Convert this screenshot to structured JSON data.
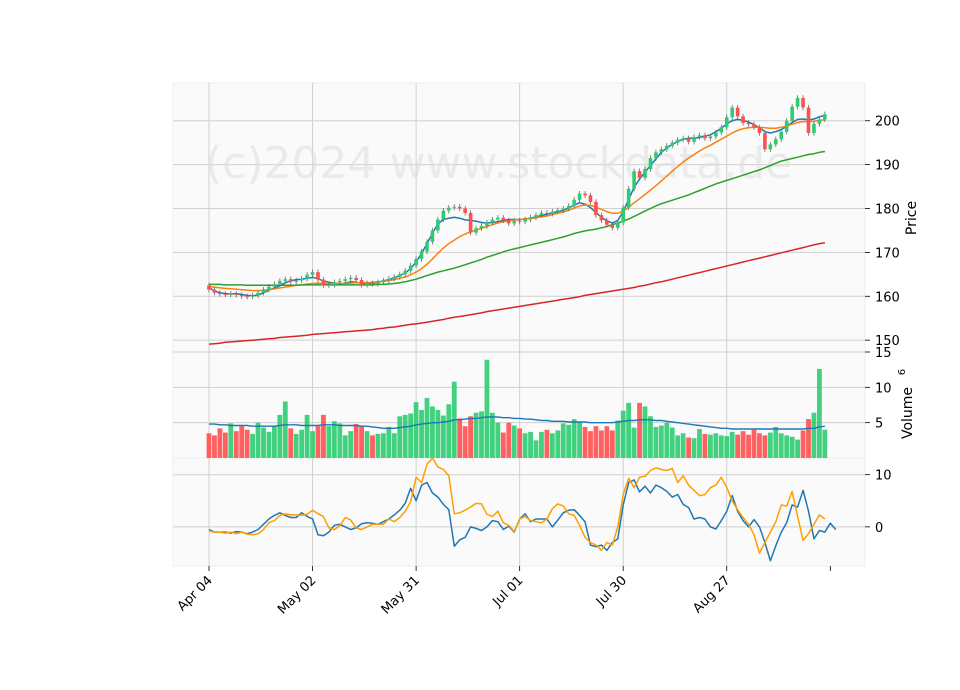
{
  "watermark": "(c)2024 www.stockdata.de",
  "chart_data": {
    "type": "candlestick",
    "x_tick_labels": [
      "Apr 04",
      "May 02",
      "May 31",
      "Jul 01",
      "Jul 30",
      "Aug 27"
    ],
    "x_tick_indices": [
      0,
      19,
      38,
      57,
      76,
      95
    ],
    "n_bars": 114,
    "price_panel": {
      "ylabel": "Price",
      "yticks": [
        150,
        160,
        170,
        180,
        190,
        200
      ],
      "ylim": [
        147.3,
        208.6
      ],
      "close": [
        161.5,
        160.8,
        160.5,
        160.4,
        160.6,
        160.3,
        160.0,
        159.9,
        160.2,
        160.8,
        161.5,
        162.2,
        162.8,
        163.5,
        163.9,
        163.3,
        163.6,
        164.0,
        164.9,
        165.5,
        163.8,
        162.5,
        162.6,
        163.2,
        163.5,
        163.9,
        164.2,
        163.7,
        162.6,
        163.0,
        162.8,
        163.2,
        163.6,
        164.0,
        164.4,
        165.0,
        165.8,
        167.0,
        168.5,
        170.2,
        172.4,
        175.0,
        177.5,
        179.5,
        180.2,
        180.4,
        180.0,
        179.0,
        174.5,
        175.5,
        176.0,
        176.8,
        177.5,
        177.9,
        177.3,
        176.6,
        177.2,
        177.0,
        177.5,
        178.0,
        178.5,
        179.0,
        178.8,
        179.3,
        179.6,
        180.0,
        180.6,
        182.0,
        183.4,
        183.0,
        181.5,
        178.5,
        177.3,
        176.3,
        175.6,
        176.8,
        180.2,
        184.5,
        188.5,
        187.0,
        189.0,
        191.5,
        192.8,
        193.5,
        194.3,
        195.0,
        195.7,
        196.0,
        195.2,
        196.3,
        196.7,
        196.0,
        196.4,
        197.3,
        198.5,
        200.8,
        203.0,
        201.0,
        199.5,
        199.2,
        198.5,
        197.2,
        193.5,
        194.6,
        195.8,
        197.5,
        200.0,
        203.2,
        205.2,
        203.0,
        197.2,
        199.3,
        200.3,
        201.5
      ],
      "ma": [
        {
          "color": "#1f77b4",
          "values": [
            162.0,
            161.2,
            160.8,
            160.6,
            160.5,
            160.6,
            160.4,
            160.2,
            160.1,
            160.3,
            160.8,
            161.4,
            161.9,
            162.4,
            163.1,
            163.5,
            163.8,
            163.9,
            164.1,
            164.3,
            164.0,
            163.5,
            163.2,
            163.0,
            162.8,
            163.0,
            163.3,
            163.2,
            162.9,
            162.8,
            163.0,
            163.2,
            163.5,
            163.8,
            164.2,
            164.7,
            165.3,
            166.3,
            167.8,
            169.8,
            172.0,
            174.4,
            176.5,
            177.5,
            177.8,
            178.0,
            177.8,
            177.4,
            177.3,
            177.1,
            176.8,
            176.7,
            176.8,
            177.0,
            177.3,
            177.5,
            177.5,
            177.5,
            177.6,
            177.8,
            178.1,
            178.4,
            178.7,
            179.0,
            179.3,
            179.6,
            180.1,
            180.8,
            181.3,
            181.0,
            180.2,
            179.1,
            178.0,
            177.2,
            176.7,
            177.3,
            179.3,
            182.1,
            184.8,
            186.7,
            188.3,
            189.8,
            191.3,
            192.8,
            193.8,
            194.6,
            195.3,
            195.8,
            196.0,
            196.0,
            196.2,
            196.5,
            196.8,
            197.5,
            198.3,
            199.3,
            200.0,
            200.3,
            200.1,
            199.7,
            199.1,
            198.4,
            197.5,
            197.2,
            197.5,
            198.0,
            198.7,
            199.6,
            200.3,
            200.4,
            200.2,
            200.4,
            200.9,
            201.2
          ]
        },
        {
          "color": "#ff7f0e",
          "values": [
            162.3,
            162.1,
            161.9,
            161.8,
            161.7,
            161.6,
            161.5,
            161.4,
            161.3,
            161.3,
            161.4,
            161.5,
            161.7,
            161.9,
            162.1,
            162.3,
            162.5,
            162.6,
            162.8,
            162.9,
            163.0,
            162.9,
            162.9,
            162.9,
            162.9,
            162.9,
            163.0,
            163.1,
            163.1,
            163.1,
            163.2,
            163.3,
            163.4,
            163.6,
            163.8,
            164.1,
            164.4,
            164.9,
            165.5,
            166.3,
            167.3,
            168.5,
            169.8,
            171.0,
            172.0,
            172.8,
            173.6,
            174.2,
            174.7,
            175.1,
            175.5,
            175.9,
            176.3,
            176.7,
            177.0,
            177.2,
            177.4,
            177.5,
            177.6,
            177.7,
            177.9,
            178.1,
            178.3,
            178.6,
            178.9,
            179.2,
            179.6,
            180.1,
            180.6,
            180.8,
            180.7,
            180.3,
            179.8,
            179.3,
            178.9,
            178.9,
            179.4,
            180.3,
            181.3,
            182.2,
            183.2,
            184.2,
            185.2,
            186.3,
            187.4,
            188.5,
            189.6,
            190.6,
            191.5,
            192.3,
            193.1,
            193.8,
            194.4,
            195.1,
            195.8,
            196.5,
            197.2,
            197.8,
            198.2,
            198.4,
            198.5,
            198.5,
            198.4,
            198.3,
            198.3,
            198.5,
            198.8,
            199.2,
            199.6,
            199.8,
            199.8,
            199.9,
            200.1,
            200.2
          ]
        },
        {
          "color": "#2ca02c",
          "values": [
            162.7,
            162.7,
            162.7,
            162.6,
            162.6,
            162.6,
            162.6,
            162.5,
            162.5,
            162.5,
            162.5,
            162.5,
            162.5,
            162.5,
            162.5,
            162.5,
            162.5,
            162.6,
            162.6,
            162.6,
            162.6,
            162.6,
            162.6,
            162.6,
            162.6,
            162.6,
            162.6,
            162.6,
            162.6,
            162.6,
            162.6,
            162.7,
            162.7,
            162.8,
            162.9,
            163.1,
            163.3,
            163.6,
            163.9,
            164.3,
            164.7,
            165.1,
            165.5,
            165.8,
            166.1,
            166.4,
            166.8,
            167.2,
            167.6,
            168.0,
            168.4,
            168.9,
            169.3,
            169.7,
            170.1,
            170.5,
            170.8,
            171.1,
            171.4,
            171.7,
            172.0,
            172.3,
            172.6,
            172.9,
            173.2,
            173.5,
            173.9,
            174.3,
            174.6,
            174.9,
            175.1,
            175.3,
            175.6,
            175.9,
            176.3,
            176.7,
            177.1,
            177.6,
            178.2,
            178.8,
            179.4,
            180.0,
            180.6,
            181.1,
            181.5,
            181.9,
            182.3,
            182.7,
            183.1,
            183.6,
            184.1,
            184.6,
            185.1,
            185.6,
            186.0,
            186.4,
            186.8,
            187.2,
            187.6,
            188.0,
            188.4,
            188.8,
            189.3,
            189.8,
            190.3,
            190.8,
            191.1,
            191.4,
            191.7,
            192.0,
            192.3,
            192.5,
            192.8,
            193.0
          ]
        },
        {
          "color": "#d62728",
          "values": [
            149.1,
            149.2,
            149.3,
            149.5,
            149.6,
            149.7,
            149.8,
            149.9,
            150.0,
            150.1,
            150.2,
            150.3,
            150.4,
            150.6,
            150.7,
            150.8,
            150.9,
            151.0,
            151.1,
            151.3,
            151.4,
            151.5,
            151.6,
            151.7,
            151.8,
            151.9,
            152.0,
            152.1,
            152.2,
            152.3,
            152.4,
            152.6,
            152.7,
            152.9,
            153.0,
            153.2,
            153.4,
            153.6,
            153.7,
            153.9,
            154.1,
            154.3,
            154.5,
            154.7,
            155.0,
            155.2,
            155.4,
            155.6,
            155.8,
            156.0,
            156.2,
            156.5,
            156.7,
            156.9,
            157.1,
            157.3,
            157.5,
            157.7,
            157.9,
            158.1,
            158.3,
            158.5,
            158.7,
            158.9,
            159.1,
            159.3,
            159.5,
            159.7,
            159.9,
            160.2,
            160.4,
            160.6,
            160.8,
            161.0,
            161.2,
            161.4,
            161.6,
            161.8,
            162.0,
            162.3,
            162.5,
            162.8,
            163.1,
            163.3,
            163.6,
            163.9,
            164.2,
            164.5,
            164.8,
            165.1,
            165.4,
            165.7,
            166.0,
            166.3,
            166.6,
            166.9,
            167.2,
            167.5,
            167.8,
            168.1,
            168.4,
            168.7,
            169.0,
            169.3,
            169.6,
            169.9,
            170.2,
            170.5,
            170.8,
            171.1,
            171.4,
            171.7,
            172.0,
            172.2
          ]
        }
      ]
    },
    "volume_panel": {
      "ylabel": "Volume",
      "exponent_label": "6",
      "yticks": [
        5,
        10,
        15
      ],
      "ylim": [
        0,
        15
      ],
      "up_color": "#2ecc71",
      "down_color": "#ff5050",
      "values": [
        3.5,
        3.2,
        4.2,
        3.6,
        4.9,
        3.8,
        4.5,
        4.0,
        3.4,
        5.0,
        4.3,
        3.7,
        4.5,
        6.1,
        8.0,
        4.2,
        3.4,
        4.0,
        6.1,
        3.8,
        4.5,
        6.1,
        4.5,
        5.2,
        4.9,
        3.2,
        3.8,
        4.8,
        4.6,
        3.8,
        3.2,
        3.4,
        3.5,
        4.4,
        3.5,
        5.9,
        6.1,
        6.3,
        7.9,
        6.8,
        8.5,
        7.3,
        6.8,
        6.0,
        7.6,
        10.8,
        5.6,
        4.5,
        5.9,
        6.4,
        6.6,
        13.9,
        6.4,
        5.0,
        3.6,
        5.0,
        4.6,
        4.2,
        3.5,
        3.7,
        2.5,
        3.7,
        4.0,
        3.5,
        3.9,
        4.9,
        4.7,
        5.5,
        5.1,
        4.4,
        3.8,
        4.5,
        3.9,
        4.5,
        3.9,
        5.3,
        6.7,
        7.8,
        4.3,
        7.8,
        7.3,
        5.9,
        4.4,
        4.6,
        5.0,
        4.3,
        3.2,
        3.5,
        2.9,
        2.8,
        4.1,
        3.4,
        3.3,
        3.5,
        3.2,
        3.1,
        3.7,
        3.3,
        3.8,
        3.3,
        4.0,
        3.5,
        3.2,
        3.6,
        4.4,
        3.5,
        3.2,
        3.0,
        2.6,
        3.9,
        5.5,
        6.4,
        12.6,
        4.0
      ],
      "volume_ma": {
        "color": "#1f77b4",
        "values": [
          4.8,
          4.8,
          4.7,
          4.7,
          4.6,
          4.6,
          4.6,
          4.6,
          4.5,
          4.5,
          4.5,
          4.5,
          4.5,
          4.6,
          4.7,
          4.7,
          4.7,
          4.6,
          4.6,
          4.6,
          4.6,
          4.7,
          4.7,
          4.7,
          4.6,
          4.6,
          4.6,
          4.6,
          4.5,
          4.5,
          4.4,
          4.3,
          4.2,
          4.2,
          4.2,
          4.3,
          4.4,
          4.5,
          4.7,
          4.8,
          4.9,
          5.0,
          5.0,
          5.1,
          5.2,
          5.4,
          5.4,
          5.5,
          5.6,
          5.6,
          5.7,
          5.8,
          5.8,
          5.8,
          5.7,
          5.7,
          5.6,
          5.6,
          5.5,
          5.5,
          5.4,
          5.3,
          5.3,
          5.2,
          5.2,
          5.2,
          5.1,
          5.1,
          5.1,
          5.1,
          5.0,
          5.0,
          5.0,
          5.0,
          5.0,
          5.1,
          5.2,
          5.3,
          5.3,
          5.4,
          5.4,
          5.4,
          5.3,
          5.3,
          5.2,
          5.1,
          5.0,
          4.9,
          4.8,
          4.7,
          4.6,
          4.5,
          4.4,
          4.3,
          4.2,
          4.2,
          4.1,
          4.1,
          4.1,
          4.1,
          4.1,
          4.1,
          4.1,
          4.1,
          4.1,
          4.1,
          4.1,
          4.1,
          4.1,
          4.1,
          4.2,
          4.2,
          4.4,
          4.5
        ]
      }
    },
    "indicator_panel": {
      "yticks": [
        0,
        10
      ],
      "ylim": [
        -7.5,
        13.2
      ],
      "series": [
        {
          "color": "#1f77b4",
          "values": [
            -0.5,
            -1.0,
            -1.0,
            -1.0,
            -1.2,
            -0.9,
            -1.0,
            -1.3,
            -1.0,
            -0.5,
            0.5,
            1.5,
            2.2,
            2.7,
            2.2,
            1.8,
            1.8,
            2.7,
            2.0,
            1.5,
            -1.5,
            -1.7,
            -1.0,
            0.3,
            0.5,
            0.0,
            -0.5,
            -0.2,
            0.6,
            0.8,
            0.7,
            0.5,
            1.0,
            1.5,
            2.3,
            3.2,
            4.5,
            7.4,
            5.0,
            8.0,
            8.5,
            6.5,
            5.7,
            4.3,
            3.3,
            -3.7,
            -2.5,
            -2.0,
            0.0,
            -0.3,
            -0.7,
            0.0,
            1.2,
            1.0,
            -0.5,
            0.1,
            -1.0,
            1.5,
            2.5,
            1.0,
            1.5,
            1.5,
            1.5,
            0.0,
            1.3,
            2.7,
            3.2,
            3.3,
            2.2,
            1.0,
            -3.5,
            -3.8,
            -3.5,
            -4.5,
            -3.0,
            -2.3,
            4.2,
            8.5,
            9.0,
            6.7,
            7.8,
            6.5,
            8.0,
            7.5,
            6.8,
            5.7,
            6.2,
            4.3,
            3.7,
            1.5,
            1.8,
            1.5,
            0.0,
            -0.4,
            1.2,
            3.0,
            6.0,
            3.0,
            1.2,
            0.0,
            1.4,
            0.0,
            -3.0,
            -6.5,
            -3.6,
            -1.0,
            0.8,
            4.2,
            3.8,
            7.0,
            3.0,
            -2.3,
            -0.7,
            -1.0,
            0.7,
            -0.5
          ]
        },
        {
          "color": "#ff9f00",
          "values": [
            -0.8,
            -1.0,
            -1.0,
            -1.2,
            -1.0,
            -1.3,
            -1.0,
            -1.4,
            -1.5,
            -1.3,
            -0.5,
            0.8,
            1.2,
            2.2,
            2.5,
            2.3,
            2.3,
            2.2,
            2.4,
            3.2,
            2.5,
            2.0,
            -0.2,
            -0.5,
            0.2,
            1.8,
            1.3,
            -0.2,
            -0.5,
            0.0,
            0.5,
            0.5,
            0.5,
            1.5,
            1.0,
            1.8,
            3.0,
            4.8,
            9.5,
            8.5,
            12.0,
            13.2,
            11.5,
            11.0,
            9.8,
            2.5,
            2.7,
            3.2,
            3.8,
            4.5,
            4.4,
            2.4,
            2.0,
            3.0,
            0.8,
            0.3,
            -0.9,
            1.5,
            2.0,
            1.2,
            1.0,
            0.8,
            1.5,
            3.5,
            4.4,
            4.0,
            2.5,
            2.2,
            0.3,
            -2.0,
            -3.0,
            -3.5,
            -4.5,
            -3.0,
            -3.5,
            0.0,
            6.2,
            9.3,
            7.5,
            9.5,
            9.7,
            10.8,
            11.3,
            11.0,
            10.8,
            11.2,
            8.5,
            9.8,
            8.0,
            7.0,
            6.0,
            6.2,
            7.5,
            8.0,
            9.5,
            7.5,
            5.0,
            3.3,
            1.8,
            0.5,
            -1.5,
            -5.0,
            -3.0,
            -1.0,
            1.0,
            4.2,
            4.0,
            6.8,
            2.0,
            -2.6,
            -1.3,
            0.5,
            2.3,
            1.5
          ]
        }
      ]
    }
  }
}
